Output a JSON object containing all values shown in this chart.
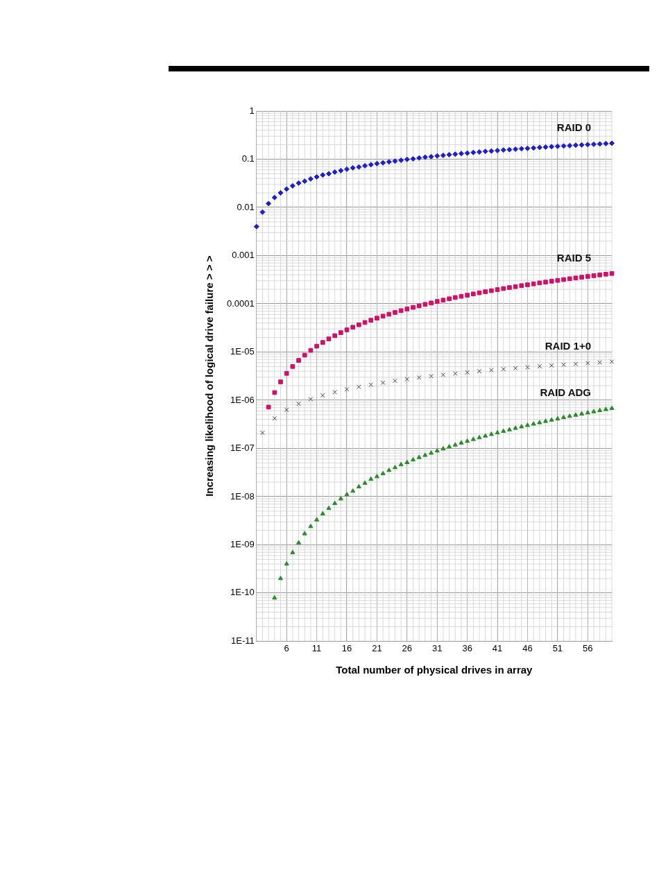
{
  "chart_data": {
    "type": "scatter",
    "xlabel": "Total number of physical drives in array",
    "ylabel": "Increasing likelihood of logical drive failure > > >",
    "log": "y",
    "grid": true,
    "legend": false,
    "xlim": [
      1,
      60
    ],
    "xticks": [
      6,
      11,
      16,
      21,
      26,
      31,
      36,
      41,
      46,
      51,
      56
    ],
    "ylim": [
      1e-11,
      1
    ],
    "yticks": [
      {
        "value": 1,
        "label": "1"
      },
      {
        "value": 0.1,
        "label": "0.1"
      },
      {
        "value": 0.01,
        "label": "0.01"
      },
      {
        "value": 0.001,
        "label": "0.001"
      },
      {
        "value": 0.0001,
        "label": "0.0001"
      },
      {
        "value": 1e-05,
        "label": "1E-05"
      },
      {
        "value": 1e-06,
        "label": "1E-06"
      },
      {
        "value": 1e-07,
        "label": "1E-07"
      },
      {
        "value": 1e-08,
        "label": "1E-08"
      },
      {
        "value": 1e-09,
        "label": "1E-09"
      },
      {
        "value": 1e-10,
        "label": "1E-10"
      },
      {
        "value": 1e-11,
        "label": "1E-11"
      }
    ],
    "series": [
      {
        "name": "RAID 0",
        "color": "#1f1fc8",
        "marker": "diamond",
        "x": [
          1,
          2,
          3,
          4,
          5,
          6,
          7,
          8,
          9,
          10,
          11,
          12,
          13,
          14,
          15,
          16,
          17,
          18,
          19,
          20,
          21,
          22,
          23,
          24,
          25,
          26,
          27,
          28,
          29,
          30,
          31,
          32,
          33,
          34,
          35,
          36,
          37,
          38,
          39,
          40,
          41,
          42,
          43,
          44,
          45,
          46,
          47,
          48,
          49,
          50,
          51,
          52,
          53,
          54,
          55,
          56,
          57,
          58,
          59,
          60
        ],
        "values": [
          0.004,
          0.008,
          0.012,
          0.016,
          0.02,
          0.024,
          0.028,
          0.032,
          0.035,
          0.039,
          0.043,
          0.047,
          0.05,
          0.054,
          0.058,
          0.062,
          0.066,
          0.069,
          0.073,
          0.077,
          0.081,
          0.084,
          0.088,
          0.091,
          0.095,
          0.099,
          0.102,
          0.106,
          0.11,
          0.113,
          0.117,
          0.12,
          0.124,
          0.127,
          0.131,
          0.134,
          0.138,
          0.141,
          0.145,
          0.148,
          0.151,
          0.155,
          0.158,
          0.161,
          0.165,
          0.168,
          0.171,
          0.175,
          0.178,
          0.182,
          0.185,
          0.188,
          0.191,
          0.195,
          0.198,
          0.201,
          0.204,
          0.207,
          0.211,
          0.214
        ]
      },
      {
        "name": "RAID 5",
        "color": "#cc1166",
        "marker": "square",
        "x": [
          3,
          4,
          5,
          6,
          7,
          8,
          9,
          10,
          11,
          12,
          13,
          14,
          15,
          16,
          17,
          18,
          19,
          20,
          21,
          22,
          23,
          24,
          25,
          26,
          27,
          28,
          29,
          30,
          31,
          32,
          33,
          34,
          35,
          36,
          37,
          38,
          39,
          40,
          41,
          42,
          43,
          44,
          45,
          46,
          47,
          48,
          49,
          50,
          51,
          52,
          53,
          54,
          55,
          56,
          57,
          58,
          59,
          60
        ],
        "values": [
          7.2e-07,
          1.44e-06,
          2.4e-06,
          3.6e-06,
          5e-06,
          6.7e-06,
          8.6e-06,
          1.08e-05,
          1.32e-05,
          1.58e-05,
          1.87e-05,
          2.18e-05,
          2.52e-05,
          2.88e-05,
          3.26e-05,
          3.67e-05,
          4.1e-05,
          4.56e-05,
          5.04e-05,
          5.54e-05,
          6.07e-05,
          6.62e-05,
          7.2e-05,
          7.8e-05,
          8.42e-05,
          9.07e-05,
          9.74e-05,
          0.000104,
          0.000112,
          0.000119,
          0.000127,
          0.000135,
          0.000143,
          0.000151,
          0.00016,
          0.000169,
          0.000178,
          0.000187,
          0.000197,
          0.000207,
          0.000217,
          0.000227,
          0.000238,
          0.000248,
          0.000259,
          0.000271,
          0.000282,
          0.000294,
          0.000306,
          0.000318,
          0.000331,
          0.000343,
          0.000356,
          0.00037,
          0.000383,
          0.000397,
          0.000411,
          0.000425
        ]
      },
      {
        "name": "RAID 1+0",
        "color": "#444444",
        "marker": "cross",
        "x": [
          2,
          4,
          6,
          8,
          10,
          12,
          14,
          16,
          18,
          20,
          22,
          24,
          26,
          28,
          30,
          32,
          34,
          36,
          38,
          40,
          42,
          44,
          46,
          48,
          50,
          52,
          54,
          56,
          58,
          60
        ],
        "values": [
          2.1e-07,
          4.2e-07,
          6.3e-07,
          8.4e-07,
          1.05e-06,
          1.26e-06,
          1.47e-06,
          1.68e-06,
          1.89e-06,
          2.1e-06,
          2.31e-06,
          2.52e-06,
          2.73e-06,
          2.94e-06,
          3.15e-06,
          3.36e-06,
          3.57e-06,
          3.78e-06,
          3.99e-06,
          4.2e-06,
          4.41e-06,
          4.62e-06,
          4.83e-06,
          5.04e-06,
          5.25e-06,
          5.46e-06,
          5.67e-06,
          5.88e-06,
          6.09e-06,
          6.3e-06
        ]
      },
      {
        "name": "RAID ADG",
        "color": "#2a8a2a",
        "marker": "triangle",
        "x": [
          4,
          5,
          6,
          7,
          8,
          9,
          10,
          11,
          12,
          13,
          14,
          15,
          16,
          17,
          18,
          19,
          20,
          21,
          22,
          23,
          24,
          25,
          26,
          27,
          28,
          29,
          30,
          31,
          32,
          33,
          34,
          35,
          36,
          37,
          38,
          39,
          40,
          41,
          42,
          43,
          44,
          45,
          46,
          47,
          48,
          49,
          50,
          51,
          52,
          53,
          54,
          55,
          56,
          57,
          58,
          59,
          60
        ],
        "values": [
          7.9e-11,
          2e-10,
          4e-10,
          6.9e-10,
          1.1e-09,
          1.7e-09,
          2.4e-09,
          3.3e-09,
          4.4e-09,
          5.7e-09,
          7.2e-09,
          9e-09,
          1.1e-08,
          1.3e-08,
          1.6e-08,
          1.9e-08,
          2.3e-08,
          2.6e-08,
          3e-08,
          3.5e-08,
          4e-08,
          4.6e-08,
          5.1e-08,
          5.8e-08,
          6.5e-08,
          7.2e-08,
          8e-08,
          8.9e-08,
          9.8e-08,
          1.08e-07,
          1.18e-07,
          1.3e-07,
          1.41e-07,
          1.54e-07,
          1.67e-07,
          1.81e-07,
          1.96e-07,
          2.11e-07,
          2.27e-07,
          2.44e-07,
          2.62e-07,
          2.81e-07,
          3.01e-07,
          3.21e-07,
          3.42e-07,
          3.65e-07,
          3.88e-07,
          4.12e-07,
          4.38e-07,
          4.64e-07,
          4.91e-07,
          5.19e-07,
          5.49e-07,
          5.79e-07,
          6.11e-07,
          6.44e-07,
          6.78e-07
        ]
      }
    ]
  }
}
